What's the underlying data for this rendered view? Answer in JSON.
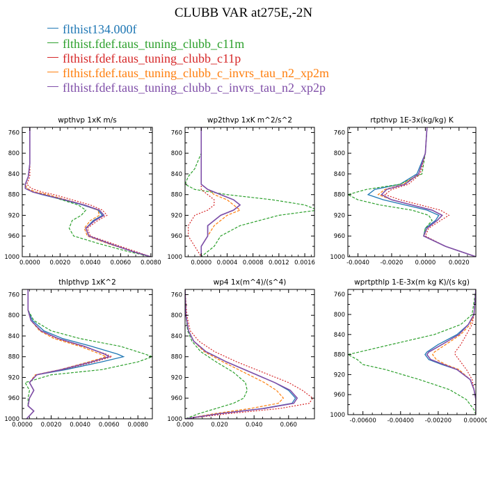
{
  "title": "CLUBB VAR at275E,-2N",
  "legend": [
    {
      "label": "flthist134.000f",
      "color": "#1f77b4"
    },
    {
      "label": "flthist.fdef.taus_tuning_clubb_c11m",
      "color": "#2ca02c"
    },
    {
      "label": "flthist.fdef.taus_tuning_clubb_c11p",
      "color": "#d62728"
    },
    {
      "label": "flthist.fdef.taus_tuning_clubb_c_invrs_tau_n2_xp2m",
      "color": "#ff7f0e"
    },
    {
      "label": "flthist.fdef.taus_tuning_clubb_c_invrs_tau_n2_xp2p",
      "color": "#7f4ea8"
    }
  ],
  "chart_data": [
    {
      "type": "line",
      "title": "wpthvp  1xK m/s",
      "xlim": [
        -0.0005,
        0.0081
      ],
      "ylim": [
        1000,
        750
      ],
      "xticks": [
        0.0,
        0.002,
        0.004,
        0.006,
        0.008
      ],
      "xtick_labels": [
        "0.0000",
        "0.0020",
        "0.0040",
        "0.0060",
        "0.0080"
      ],
      "yticks": [
        760,
        800,
        840,
        880,
        920,
        960,
        1000
      ],
      "y": [
        750,
        790,
        820,
        845,
        860,
        868,
        875,
        880,
        890,
        900,
        910,
        920,
        930,
        945,
        960,
        975,
        990,
        1000
      ],
      "series": [
        {
          "values": [
            0.0,
            0.0,
            0.0,
            -0.0001,
            -0.0003,
            -0.0003,
            0.0002,
            0.0008,
            0.0022,
            0.0035,
            0.0045,
            0.0048,
            0.0042,
            0.0037,
            0.0039,
            0.0053,
            0.0068,
            0.008
          ]
        },
        {
          "values": [
            0.0,
            0.0,
            0.0,
            -0.0001,
            -0.0003,
            -0.0002,
            0.0002,
            0.001,
            0.0021,
            0.0032,
            0.0037,
            0.0034,
            0.0028,
            0.0026,
            0.0029,
            0.0046,
            0.0065,
            0.008
          ]
        },
        {
          "values": [
            0.0,
            0.0,
            0.0,
            0.0,
            -0.0002,
            0.0001,
            0.0008,
            0.0016,
            0.0028,
            0.004,
            0.0048,
            0.0051,
            0.0045,
            0.0038,
            0.004,
            0.0055,
            0.007,
            0.008
          ]
        },
        {
          "values": [
            0.0,
            0.0,
            0.0,
            -0.0001,
            -0.0003,
            -0.0002,
            0.0004,
            0.0012,
            0.0024,
            0.0036,
            0.0045,
            0.0046,
            0.004,
            0.0036,
            0.0038,
            0.0052,
            0.0068,
            0.008
          ]
        },
        {
          "values": [
            0.0,
            0.0,
            0.0,
            -0.0001,
            -0.0003,
            -0.0003,
            0.0002,
            0.0009,
            0.0023,
            0.0036,
            0.0046,
            0.0049,
            0.0043,
            0.0037,
            0.0039,
            0.0053,
            0.0068,
            0.008
          ]
        }
      ]
    },
    {
      "type": "line",
      "title": "wp2thvp  1xK m^2/s^2",
      "xlim": [
        -0.00025,
        0.00175
      ],
      "ylim": [
        1000,
        750
      ],
      "xticks": [
        0.0,
        0.0004,
        0.0008,
        0.0012,
        0.0016
      ],
      "xtick_labels": [
        "0.0000",
        "0.0004",
        "0.0008",
        "0.0012",
        "0.0016"
      ],
      "yticks": [
        760,
        800,
        840,
        880,
        920,
        960,
        1000
      ],
      "y": [
        750,
        800,
        830,
        845,
        860,
        870,
        880,
        890,
        900,
        910,
        920,
        940,
        960,
        980,
        1000
      ],
      "series": [
        {
          "values": [
            0.0,
            0.0,
            0.0,
            0.0,
            0.0,
            0.0001,
            0.0003,
            0.0005,
            0.0006,
            0.0005,
            0.0003,
            0.0001,
            0.0001,
            0.0,
            0.0
          ]
        },
        {
          "values": [
            0.0,
            0.0,
            -0.0001,
            -0.0002,
            -0.00025,
            -0.0001,
            0.0004,
            0.0011,
            0.0016,
            0.0018,
            0.0012,
            0.0006,
            0.0003,
            0.0002,
            0.0
          ]
        },
        {
          "values": [
            0.0,
            0.0,
            0.0,
            0.0,
            0.0,
            0.0,
            0.0001,
            0.0002,
            0.0002,
            0.0001,
            -0.0001,
            -0.0002,
            -0.0002,
            -0.0001,
            0.0
          ]
        },
        {
          "values": [
            0.0,
            0.0,
            0.0,
            0.0,
            0.0,
            0.0001,
            0.0002,
            0.0004,
            0.0005,
            0.0006,
            0.0004,
            0.0002,
            0.0001,
            0.0,
            0.0
          ]
        },
        {
          "values": [
            0.0,
            0.0,
            0.0,
            0.0,
            0.0,
            0.0001,
            0.0003,
            0.0005,
            0.0006,
            0.0005,
            0.0003,
            0.0001,
            0.0001,
            0.0,
            0.0
          ]
        }
      ]
    },
    {
      "type": "line",
      "title": "rtpthvp  1E-3x(kg/kg) K",
      "xlim": [
        -0.0046,
        0.003
      ],
      "ylim": [
        1000,
        750
      ],
      "xticks": [
        -0.004,
        -0.002,
        0.0,
        0.002
      ],
      "xtick_labels": [
        "-0.0040",
        "-0.0020",
        "0.0000",
        "0.0020"
      ],
      "yticks": [
        760,
        800,
        840,
        880,
        920,
        960,
        1000
      ],
      "y": [
        750,
        800,
        840,
        860,
        870,
        880,
        890,
        900,
        910,
        920,
        930,
        945,
        960,
        980,
        1000
      ],
      "series": [
        {
          "values": [
            0.0001,
            0.0,
            -0.0005,
            -0.0015,
            -0.003,
            -0.0034,
            -0.0025,
            -0.0012,
            0.0001,
            0.0008,
            0.0006,
            0.0,
            -0.0001,
            0.0012,
            0.003
          ]
        },
        {
          "values": [
            0.0001,
            0.0,
            -0.0002,
            -0.0015,
            -0.0035,
            -0.0046,
            -0.004,
            -0.0027,
            -0.0008,
            0.0002,
            0.0004,
            0.0,
            -0.0001,
            0.0012,
            0.003
          ]
        },
        {
          "values": [
            0.0001,
            0.0,
            -0.0003,
            -0.001,
            -0.002,
            -0.0024,
            -0.0015,
            -0.0003,
            0.0009,
            0.0014,
            0.0009,
            0.0002,
            0.0,
            0.0012,
            0.003
          ]
        },
        {
          "values": [
            0.0001,
            0.0,
            -0.0004,
            -0.0013,
            -0.0024,
            -0.0028,
            -0.002,
            -0.0008,
            0.0004,
            0.001,
            0.0007,
            0.0001,
            -0.0001,
            0.0012,
            0.003
          ]
        },
        {
          "values": [
            0.0001,
            0.0,
            -0.0004,
            -0.0012,
            -0.0023,
            -0.0026,
            -0.002,
            -0.0008,
            0.0004,
            0.001,
            0.0007,
            0.0001,
            -0.0001,
            0.0012,
            0.003
          ]
        }
      ]
    },
    {
      "type": "line",
      "title": "thlpthvp  1xK^2",
      "xlim": [
        0.0,
        0.009
      ],
      "ylim": [
        1000,
        750
      ],
      "xticks": [
        0.0,
        0.002,
        0.004,
        0.006,
        0.008
      ],
      "xtick_labels": [
        "0.0000",
        "0.0020",
        "0.0040",
        "0.0060",
        "0.0080"
      ],
      "yticks": [
        760,
        800,
        840,
        880,
        920,
        960,
        1000
      ],
      "y": [
        750,
        790,
        810,
        830,
        845,
        860,
        875,
        880,
        890,
        905,
        915,
        930,
        945,
        960,
        975,
        985,
        1000
      ],
      "series": [
        {
          "values": [
            0.0004,
            0.0004,
            0.0007,
            0.0015,
            0.0028,
            0.0048,
            0.0066,
            0.007,
            0.0055,
            0.003,
            0.001,
            0.0005,
            0.0008,
            0.0005,
            0.0004,
            0.0008,
            0.0003
          ]
        },
        {
          "values": [
            0.0004,
            0.0004,
            0.0008,
            0.002,
            0.004,
            0.0068,
            0.0085,
            0.009,
            0.008,
            0.0055,
            0.002,
            0.0002,
            0.0005,
            0.0004,
            0.0004,
            0.0008,
            0.0003
          ]
        },
        {
          "values": [
            0.0004,
            0.0004,
            0.0006,
            0.0013,
            0.0024,
            0.0042,
            0.0058,
            0.0062,
            0.005,
            0.0028,
            0.001,
            0.0005,
            0.0008,
            0.0005,
            0.0004,
            0.0008,
            0.0003
          ]
        },
        {
          "values": [
            0.0004,
            0.0004,
            0.0006,
            0.0012,
            0.0022,
            0.004,
            0.0054,
            0.0058,
            0.0046,
            0.0026,
            0.0009,
            0.0005,
            0.0008,
            0.0005,
            0.0004,
            0.0008,
            0.0003
          ]
        },
        {
          "values": [
            0.0004,
            0.0004,
            0.0006,
            0.0013,
            0.0025,
            0.0043,
            0.0057,
            0.006,
            0.0048,
            0.0027,
            0.001,
            0.0005,
            0.0008,
            0.0005,
            0.0004,
            0.0008,
            0.0003
          ]
        }
      ]
    },
    {
      "type": "line",
      "title": "wp4  1x(m^4)/(s^4)",
      "xlim": [
        0.0,
        0.075
      ],
      "ylim": [
        1000,
        750
      ],
      "xticks": [
        0.0,
        0.02,
        0.04,
        0.06
      ],
      "xtick_labels": [
        "0.000",
        "0.020",
        "0.040",
        "0.060"
      ],
      "yticks": [
        760,
        800,
        840,
        880,
        920,
        960,
        1000
      ],
      "y": [
        750,
        800,
        830,
        850,
        870,
        890,
        910,
        930,
        945,
        960,
        970,
        980,
        990,
        1000
      ],
      "series": [
        {
          "values": [
            0.0,
            0.0005,
            0.002,
            0.005,
            0.012,
            0.024,
            0.038,
            0.052,
            0.06,
            0.064,
            0.062,
            0.045,
            0.02,
            0.0
          ]
        },
        {
          "values": [
            0.0,
            0.0005,
            0.0015,
            0.004,
            0.009,
            0.018,
            0.028,
            0.035,
            0.036,
            0.034,
            0.028,
            0.018,
            0.008,
            0.0
          ]
        },
        {
          "values": [
            0.0,
            0.001,
            0.003,
            0.008,
            0.017,
            0.03,
            0.045,
            0.06,
            0.068,
            0.074,
            0.072,
            0.055,
            0.025,
            0.0
          ]
        },
        {
          "values": [
            0.0,
            0.0005,
            0.002,
            0.005,
            0.011,
            0.022,
            0.034,
            0.046,
            0.053,
            0.057,
            0.054,
            0.038,
            0.017,
            0.0
          ]
        },
        {
          "values": [
            0.0,
            0.0005,
            0.002,
            0.005,
            0.012,
            0.024,
            0.038,
            0.052,
            0.061,
            0.065,
            0.063,
            0.046,
            0.02,
            0.0
          ]
        }
      ]
    },
    {
      "type": "line",
      "title": "wprtpthlp  1-E-3x(m kg K)/(s kg)",
      "xlim": [
        -0.0068,
        0.0
      ],
      "ylim": [
        1000,
        750
      ],
      "xticks": [
        -0.006,
        -0.004,
        -0.002,
        0.0
      ],
      "xtick_labels": [
        "-0.00600",
        "-0.00400",
        "-0.00200",
        "0.00000"
      ],
      "yticks": [
        760,
        800,
        840,
        880,
        920,
        960,
        1000
      ],
      "y": [
        750,
        800,
        820,
        840,
        860,
        875,
        880,
        890,
        900,
        910,
        930,
        950,
        970,
        990,
        1000
      ],
      "series": [
        {
          "values": [
            0.0,
            -0.0001,
            -0.0004,
            -0.001,
            -0.002,
            -0.0026,
            -0.0027,
            -0.0025,
            -0.0018,
            -0.001,
            -0.0003,
            -0.0001,
            0.0,
            0.0,
            0.0
          ]
        },
        {
          "values": [
            0.0,
            -0.0002,
            -0.0008,
            -0.0022,
            -0.0045,
            -0.0062,
            -0.0068,
            -0.0063,
            -0.006,
            -0.0048,
            -0.003,
            -0.0014,
            -0.0005,
            -0.0001,
            0.0
          ]
        },
        {
          "values": [
            0.0,
            -0.0001,
            -0.0002,
            -0.0005,
            -0.0008,
            -0.0011,
            -0.0011,
            -0.0009,
            -0.0007,
            -0.0005,
            -0.0002,
            -0.0001,
            0.0,
            0.0,
            0.0
          ]
        },
        {
          "values": [
            0.0,
            -0.0001,
            -0.0003,
            -0.0008,
            -0.0016,
            -0.0022,
            -0.0023,
            -0.0021,
            -0.0016,
            -0.0009,
            -0.0003,
            -0.0001,
            0.0,
            0.0,
            0.0
          ]
        },
        {
          "values": [
            0.0,
            -0.0001,
            -0.0004,
            -0.0009,
            -0.0018,
            -0.0025,
            -0.0026,
            -0.0024,
            -0.0017,
            -0.001,
            -0.0003,
            -0.0001,
            0.0,
            0.0,
            0.0
          ]
        }
      ]
    }
  ]
}
